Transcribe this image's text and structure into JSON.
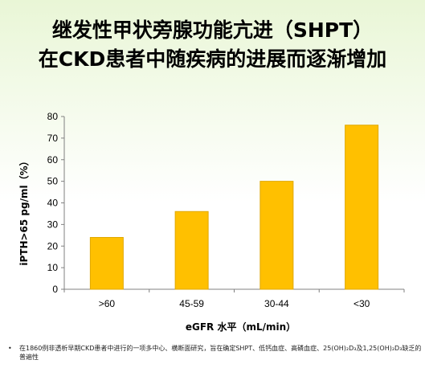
{
  "slide": {
    "title_line1": "继发性甲状旁腺功能亢进（SHPT）",
    "title_line2": "在CKD患者中随疾病的进展而逐渐增加",
    "footnote_bullet": "•",
    "footnote": "在1860例非透析早期CKD患者中进行的一项多中心、横断面研究，旨在确定SHPT、低钙血症、高磷血症、25(OH)₂D₃及1,25(OH)₂D₃缺乏的普遍性"
  },
  "colors": {
    "bar": "#ffc000",
    "bar_edge": "#e0a800",
    "axis": "#808080"
  },
  "chart_data": {
    "type": "bar",
    "categories": [
      ">60",
      "45-59",
      "30-44",
      "<30"
    ],
    "values": [
      24,
      36,
      50,
      76
    ],
    "xlabel": "eGFR 水平（mL/min）",
    "ylabel": "iPTH>65 pg/ml（%）",
    "ylim": [
      0,
      80
    ],
    "yticks": [
      0,
      10,
      20,
      30,
      40,
      50,
      60,
      70,
      80
    ]
  }
}
